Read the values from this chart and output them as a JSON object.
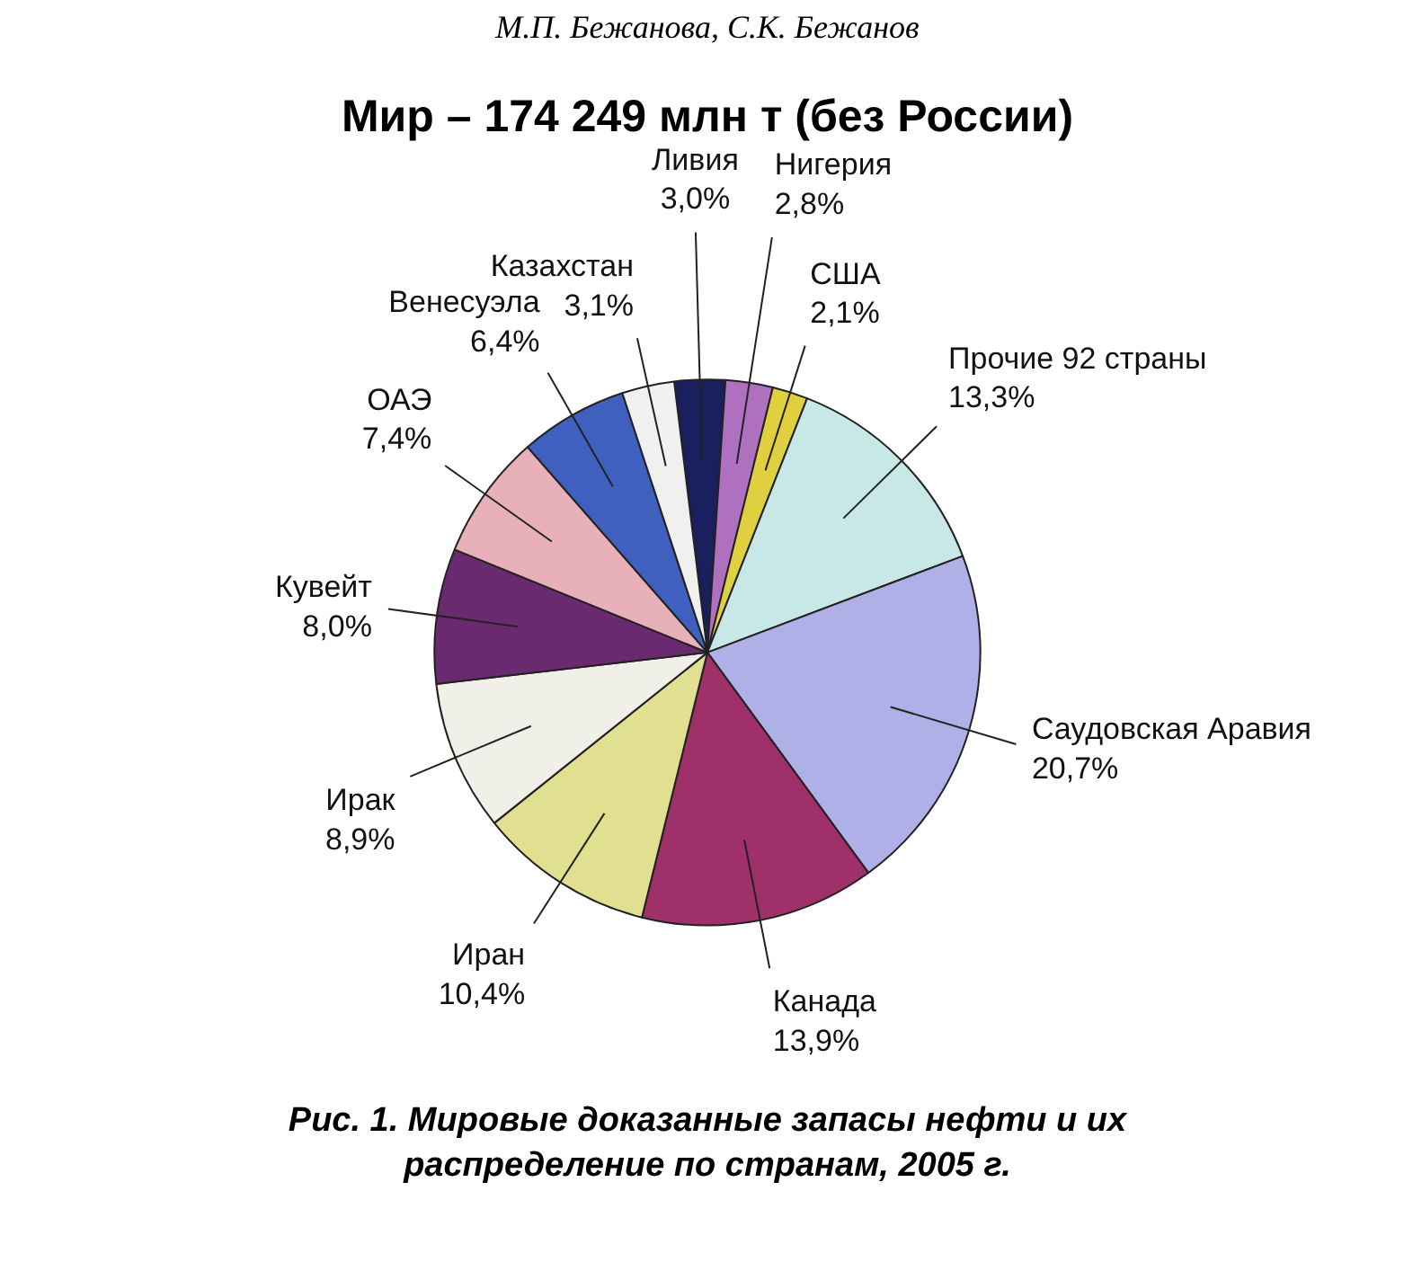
{
  "chart_data": {
    "type": "pie",
    "title": "Мир – 174 249 млн т (без России)",
    "categories": [
      "Ливия",
      "Нигерия",
      "США",
      "Прочие 92 страны",
      "Саудовская Аравия",
      "Канада",
      "Иран",
      "Ирак",
      "Кувейт",
      "ОАЭ",
      "Венесуэла",
      "Казахстан"
    ],
    "values": [
      3.0,
      2.8,
      2.1,
      13.3,
      20.7,
      13.9,
      10.4,
      8.9,
      8.0,
      7.4,
      6.4,
      3.1
    ],
    "value_labels": [
      "3,0%",
      "2,8%",
      "2,1%",
      "13,3%",
      "20,7%",
      "13,9%",
      "10,4%",
      "8,9%",
      "8,0%",
      "7,4%",
      "6,4%",
      "3,1%"
    ],
    "colors": [
      "#1a1f5e",
      "#b070c0",
      "#e0d040",
      "#c8e8e8",
      "#b0b0e8",
      "#a0306a",
      "#e0e090",
      "#f0f0e8",
      "#6a2a70",
      "#e8b0b8",
      "#4060c0",
      "#f0f0f0"
    ],
    "annotations": [
      "М.П. Бежанова, С.К. Бежанов",
      "Рис. 1. Мировые доказанные запасы нефти и их\nраспределение по странам, 2005 г."
    ]
  }
}
